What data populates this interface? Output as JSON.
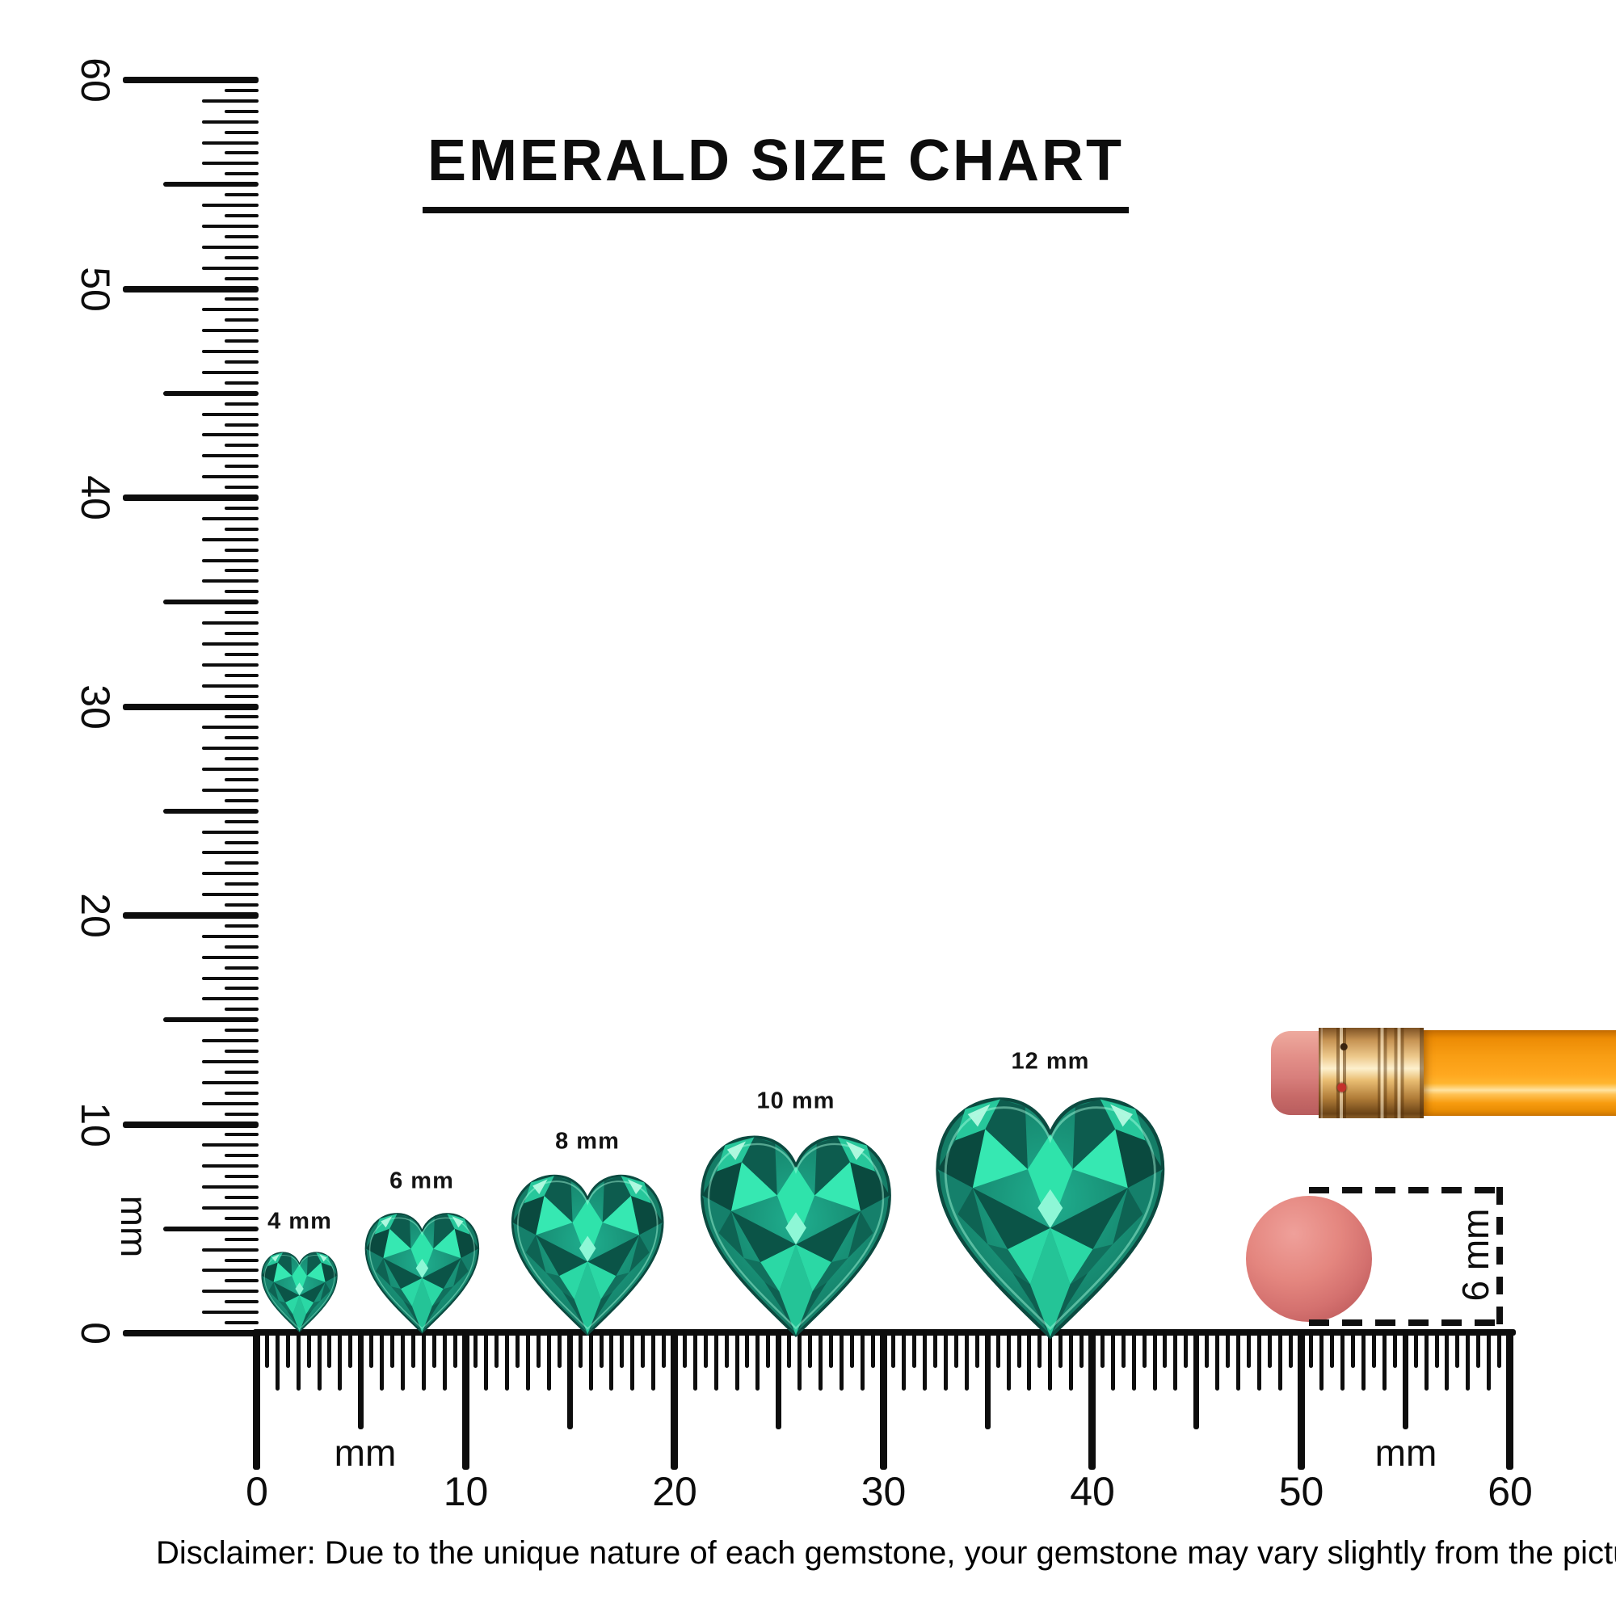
{
  "title": "EMERALD SIZE CHART",
  "rulers": {
    "vertical": {
      "labels": [
        "0",
        "10",
        "20",
        "30",
        "40",
        "50",
        "60"
      ],
      "unit_label": "mm"
    },
    "horizontal": {
      "labels": [
        "0",
        "10",
        "20",
        "30",
        "40",
        "50",
        "60"
      ],
      "unit_labels": [
        "mm",
        "mm"
      ]
    }
  },
  "gems": [
    {
      "label": "4 mm",
      "size_mm": 4
    },
    {
      "label": "6 mm",
      "size_mm": 6
    },
    {
      "label": "8 mm",
      "size_mm": 8
    },
    {
      "label": "10 mm",
      "size_mm": 10
    },
    {
      "label": "12 mm",
      "size_mm": 12
    }
  ],
  "eraser_annotation": {
    "label": "6 mm"
  },
  "disclaimer": "Disclaimer: Due to the unique nature of each gemstone, your gemstone may vary slightly from the picture shown.",
  "colors": {
    "ink": "#0d0d0d",
    "gem_bright": "#2fe3ab",
    "gem_mid": "#1a9a7f",
    "gem_dark": "#0a4a3f",
    "pencil_body": "#f89d13",
    "pencil_ferrule": "#e9bd72",
    "eraser_pink": "#d4716f"
  }
}
